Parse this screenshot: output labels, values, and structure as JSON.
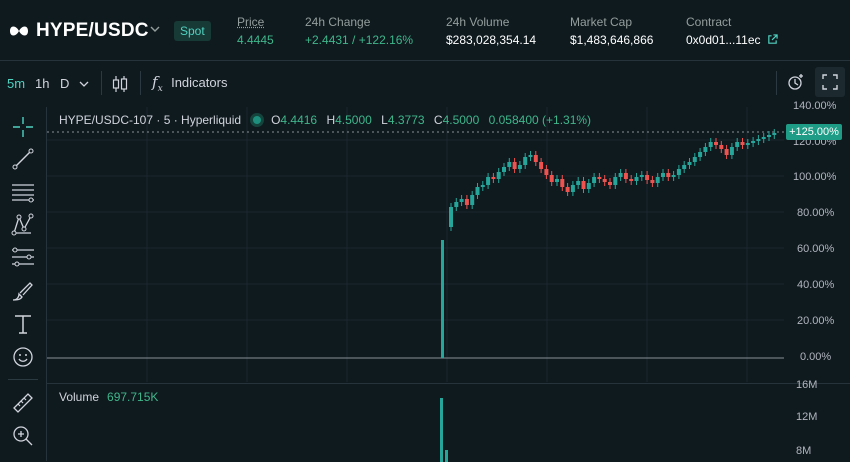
{
  "header": {
    "pair": "HYPE/USDC",
    "market_type": "Spot",
    "price_label": "Price",
    "price_value": "4.4445",
    "change_label": "24h Change",
    "change_value": "+2.4431 / +122.16%",
    "volume_label": "24h Volume",
    "volume_value": "$283,028,354.14",
    "mcap_label": "Market Cap",
    "mcap_value": "$1,483,646,866",
    "contract_label": "Contract",
    "contract_value": "0x0d01...11ec"
  },
  "toolbar": {
    "intervals": [
      "5m",
      "1h",
      "D"
    ],
    "indicators_label": "Indicators"
  },
  "legend": {
    "symbol": "HYPE/USDC-107 · 5 · Hyperliquid",
    "o_key": "O",
    "o_val": "4.4416",
    "h_key": "H",
    "h_val": "4.5000",
    "l_key": "L",
    "l_val": "4.3773",
    "c_key": "C",
    "c_val": "4.5000",
    "change": "0.058400 (+1.31%)"
  },
  "volume": {
    "label": "Volume",
    "value": "697.715K"
  },
  "price_axis": {
    "ticks": [
      "140.00%",
      "120.00%",
      "100.00%",
      "80.00%",
      "60.00%",
      "40.00%",
      "20.00%",
      "0.00%"
    ],
    "current_tag": "+125.00%"
  },
  "volume_axis": {
    "ticks": [
      "16M",
      "12M",
      "8M"
    ]
  },
  "colors": {
    "up": "#26a69a",
    "down": "#ef5350",
    "accent": "#50d2c1"
  },
  "icons": [
    "crosshair-icon",
    "trendline-icon",
    "horizontal-lines-icon",
    "pattern-icon",
    "fib-icon",
    "brush-icon",
    "text-icon",
    "emoji-icon",
    "ruler-icon",
    "zoom-in-icon",
    "candles-icon",
    "fx-icon",
    "screenshot-icon",
    "fullscreen-icon",
    "external-link-icon"
  ]
}
